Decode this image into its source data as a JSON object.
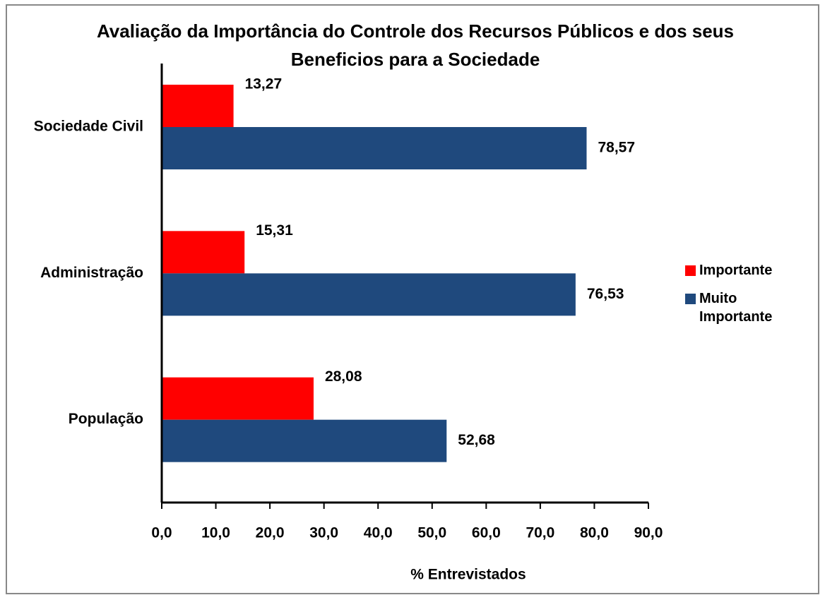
{
  "chart_data": {
    "type": "hbar",
    "title": "Avaliação da Importância do Controle dos Recursos Públicos e dos seus Beneficios para a Sociedade",
    "xlabel": "% Entrevistados",
    "categories": [
      "Sociedade Civil",
      "Administração",
      "População"
    ],
    "series": [
      {
        "name": "Importante",
        "color": "#ff0000",
        "values": [
          13.27,
          15.31,
          28.08
        ],
        "value_labels": [
          "13,27",
          "15,31",
          "28,08"
        ]
      },
      {
        "name": "Muito Importante",
        "color": "#1f497d",
        "values": [
          78.57,
          76.53,
          52.68
        ],
        "value_labels": [
          "78,57",
          "76,53",
          "52,68"
        ]
      }
    ],
    "xlim": [
      0,
      90
    ],
    "xticks": [
      {
        "value": 0,
        "label": "0,0"
      },
      {
        "value": 10,
        "label": "10,0"
      },
      {
        "value": 20,
        "label": "20,0"
      },
      {
        "value": 30,
        "label": "30,0"
      },
      {
        "value": 40,
        "label": "40,0"
      },
      {
        "value": 50,
        "label": "50,0"
      },
      {
        "value": 60,
        "label": "60,0"
      },
      {
        "value": 70,
        "label": "70,0"
      },
      {
        "value": 80,
        "label": "80,0"
      },
      {
        "value": 90,
        "label": "90,0"
      }
    ],
    "legend": "right"
  }
}
